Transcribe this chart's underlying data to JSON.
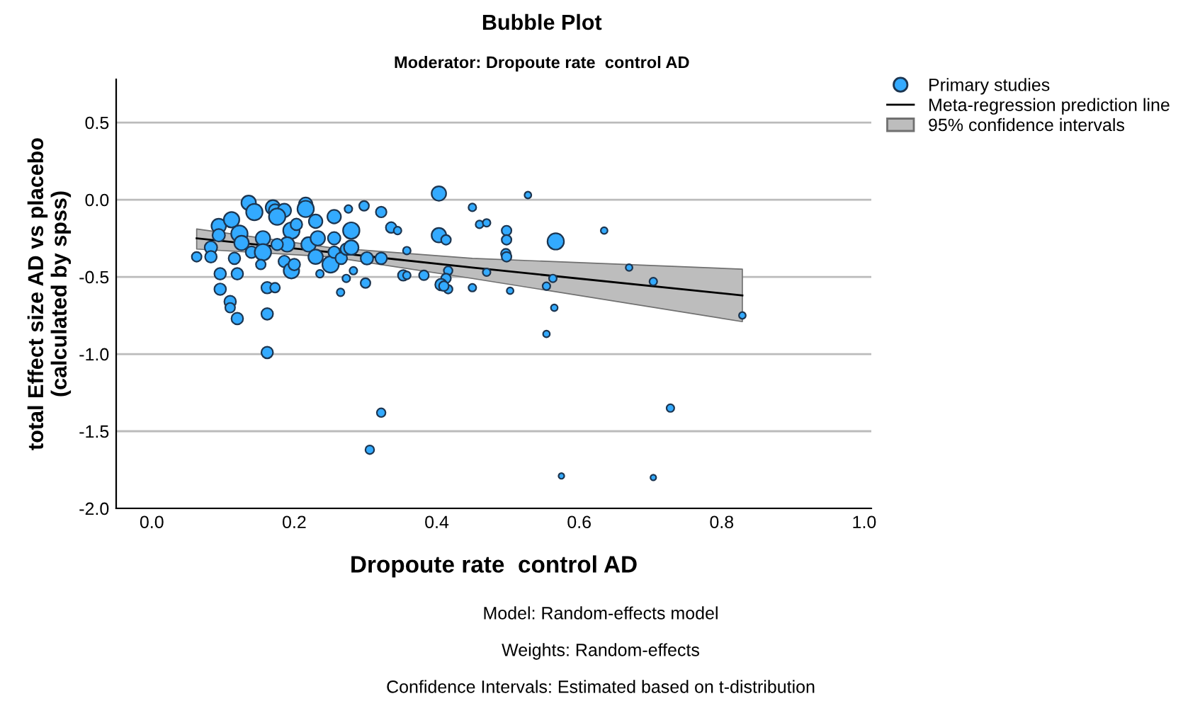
{
  "chart_data": {
    "type": "bubble",
    "title": "Bubble Plot",
    "subtitle": "Moderator: Dropoute rate  control AD",
    "xlabel": "Dropoute rate  control AD",
    "ylabel": "total Effect size AD vs placebo\n(calculated by spss)",
    "xlim": [
      -0.05,
      1.01
    ],
    "ylim": [
      -2.0,
      0.78
    ],
    "xticks": [
      {
        "value": 0,
        "label": "0.0"
      },
      {
        "value": 0.2,
        "label": "0.2"
      },
      {
        "value": 0.4,
        "label": "0.4"
      },
      {
        "value": 0.6,
        "label": "0.6"
      },
      {
        "value": 0.8,
        "label": "0.8"
      },
      {
        "value": 1,
        "label": "1.0"
      }
    ],
    "yticks": [
      {
        "value": -2,
        "label": "-2.0"
      },
      {
        "value": -1.5,
        "label": "-1.5"
      },
      {
        "value": -1,
        "label": "-1.0"
      },
      {
        "value": -0.5,
        "label": "-0.5"
      },
      {
        "value": 0,
        "label": "0.0"
      },
      {
        "value": 0.5,
        "label": "0.5"
      }
    ],
    "grid": "y",
    "legend": "top right",
    "series": [
      {
        "type": "bubble",
        "name": "Primary studies",
        "color": "#33aaff",
        "marker": "circle",
        "x": [
          0.063,
          0.083,
          0.083,
          0.094,
          0.094,
          0.096,
          0.096,
          0.112,
          0.116,
          0.12,
          0.11,
          0.11,
          0.12,
          0.136,
          0.144,
          0.123,
          0.126,
          0.14,
          0.156,
          0.156,
          0.153,
          0.162,
          0.173,
          0.162,
          0.162,
          0.17,
          0.173,
          0.186,
          0.176,
          0.196,
          0.19,
          0.176,
          0.186,
          0.196,
          0.2,
          0.203,
          0.216,
          0.216,
          0.22,
          0.23,
          0.233,
          0.23,
          0.236,
          0.251,
          0.256,
          0.256,
          0.256,
          0.266,
          0.273,
          0.273,
          0.265,
          0.28,
          0.28,
          0.276,
          0.283,
          0.298,
          0.302,
          0.3,
          0.322,
          0.322,
          0.336,
          0.345,
          0.358,
          0.353,
          0.358,
          0.382,
          0.322,
          0.306,
          0.403,
          0.403,
          0.413,
          0.416,
          0.413,
          0.406,
          0.416,
          0.41,
          0.45,
          0.46,
          0.47,
          0.47,
          0.45,
          0.498,
          0.498,
          0.497,
          0.498,
          0.503,
          0.528,
          0.567,
          0.563,
          0.554,
          0.565,
          0.554,
          0.575,
          0.635,
          0.67,
          0.704,
          0.728,
          0.704,
          0.829
        ],
        "values": [
          -0.37,
          -0.31,
          -0.37,
          -0.17,
          -0.23,
          -0.48,
          -0.58,
          -0.13,
          -0.38,
          -0.48,
          -0.66,
          -0.7,
          -0.77,
          -0.02,
          -0.08,
          -0.22,
          -0.28,
          -0.34,
          -0.25,
          -0.34,
          -0.42,
          -0.57,
          -0.57,
          -0.74,
          -0.99,
          -0.05,
          -0.07,
          -0.07,
          -0.11,
          -0.2,
          -0.29,
          -0.29,
          -0.4,
          -0.46,
          -0.42,
          -0.16,
          -0.03,
          -0.06,
          -0.29,
          -0.14,
          -0.25,
          -0.37,
          -0.48,
          -0.42,
          -0.11,
          -0.25,
          -0.34,
          -0.38,
          -0.32,
          -0.51,
          -0.6,
          -0.2,
          -0.31,
          -0.06,
          -0.46,
          -0.04,
          -0.38,
          -0.54,
          -0.08,
          -0.38,
          -0.18,
          -0.2,
          -0.33,
          -0.49,
          -0.49,
          -0.49,
          -1.38,
          -1.62,
          0.04,
          -0.23,
          -0.26,
          -0.46,
          -0.51,
          -0.55,
          -0.58,
          -0.56,
          -0.05,
          -0.16,
          -0.15,
          -0.47,
          -0.57,
          -0.2,
          -0.26,
          -0.35,
          -0.37,
          -0.59,
          0.03,
          -0.27,
          -0.51,
          -0.56,
          -0.7,
          -0.87,
          -1.79,
          -0.2,
          -0.44,
          -0.53,
          -1.35,
          -1.8,
          -0.75
        ],
        "sizes": [
          0.35,
          0.58,
          0.5,
          0.78,
          0.58,
          0.5,
          0.5,
          0.89,
          0.5,
          0.5,
          0.5,
          0.35,
          0.5,
          0.78,
          1,
          1,
          0.78,
          0.5,
          0.78,
          1,
          0.35,
          0.5,
          0.35,
          0.5,
          0.5,
          0.78,
          0.58,
          0.68,
          1,
          1,
          0.78,
          0.5,
          0.5,
          0.89,
          0.5,
          0.5,
          0.68,
          1,
          0.78,
          0.68,
          0.78,
          0.78,
          0.22,
          1,
          0.68,
          0.58,
          0.5,
          0.5,
          0.5,
          0.22,
          0.22,
          1,
          0.78,
          0.22,
          0.22,
          0.35,
          0.58,
          0.35,
          0.42,
          0.5,
          0.42,
          0.22,
          0.22,
          0.42,
          0.22,
          0.35,
          0.28,
          0.28,
          0.78,
          0.78,
          0.35,
          0.28,
          0.35,
          0.5,
          0.28,
          0.35,
          0.22,
          0.22,
          0.22,
          0.22,
          0.22,
          0.35,
          0.35,
          0.35,
          0.35,
          0.17,
          0.17,
          1,
          0.22,
          0.22,
          0.17,
          0.17,
          0.12,
          0.17,
          0.17,
          0.22,
          0.22,
          0.12,
          0.17
        ]
      },
      {
        "type": "line",
        "name": "Meta-regression prediction line",
        "color": "#000000",
        "x": [
          0.063,
          0.25,
          0.45,
          0.829
        ],
        "values": [
          -0.25,
          -0.34,
          -0.44,
          -0.62
        ],
        "lower": [
          -0.32,
          -0.37,
          -0.51,
          -0.79
        ],
        "upper": [
          -0.19,
          -0.31,
          -0.38,
          -0.45
        ]
      }
    ],
    "annotations": [
      "95% confidence intervals",
      "Model: Random-effects model",
      "Weights: Random-effects",
      "Confidence Intervals: Estimated based on t-distribution"
    ]
  }
}
